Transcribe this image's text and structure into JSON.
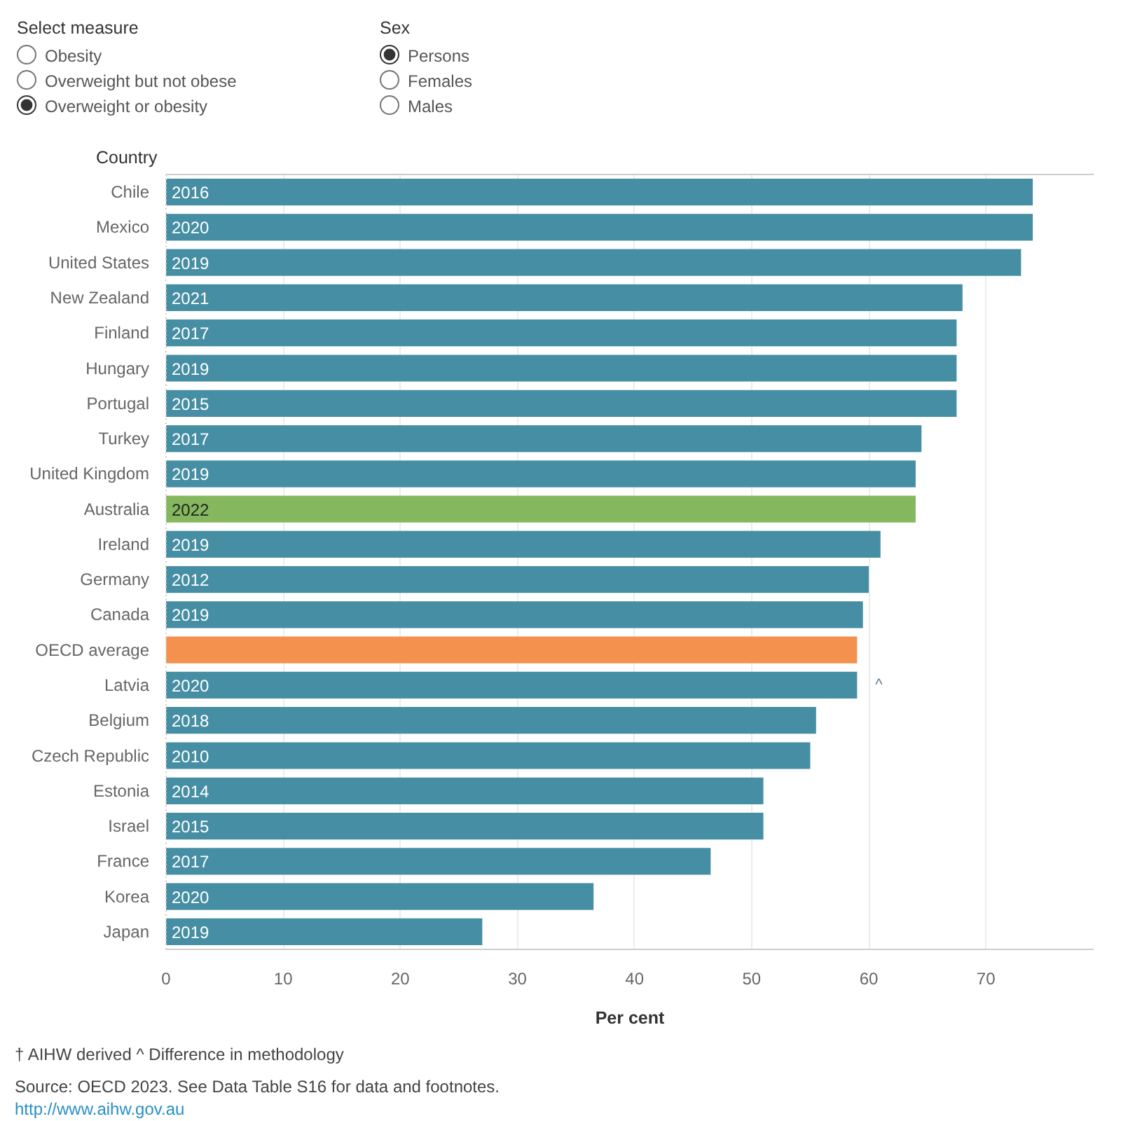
{
  "chart_data": {
    "type": "bar",
    "orientation": "horizontal",
    "ylabel": "Country",
    "xlabel": "Per cent",
    "categories": [
      "Chile",
      "Mexico",
      "United States",
      "New Zealand",
      "Finland",
      "Hungary",
      "Portugal",
      "Turkey",
      "United Kingdom",
      "Australia",
      "Ireland",
      "Germany",
      "Canada",
      "OECD average",
      "Latvia",
      "Belgium",
      "Czech Republic",
      "Estonia",
      "Israel",
      "France",
      "Korea",
      "Japan"
    ],
    "values": [
      74,
      74,
      73,
      68,
      67.5,
      67.5,
      67.5,
      64.5,
      64,
      64,
      61,
      60,
      59.5,
      59,
      59,
      55.5,
      55,
      51,
      51,
      46.5,
      36.5,
      27
    ],
    "colors": [
      "#468ea3",
      "#468ea3",
      "#468ea3",
      "#468ea3",
      "#468ea3",
      "#468ea3",
      "#468ea3",
      "#468ea3",
      "#468ea3",
      "#84b75e",
      "#468ea3",
      "#468ea3",
      "#468ea3",
      "#f5914f",
      "#468ea3",
      "#468ea3",
      "#468ea3",
      "#468ea3",
      "#468ea3",
      "#468ea3",
      "#468ea3",
      "#468ea3"
    ],
    "xlim": [
      0,
      79.2
    ],
    "xticks": [
      0,
      10,
      20,
      30,
      40,
      50,
      60,
      70
    ],
    "grid": "x",
    "annotations": [
      "Select measure",
      "Obesity",
      "Overweight but not obese",
      "Overweight or obesity",
      "Sex",
      "Persons",
      "Females",
      "Males",
      "† AIHW derived  ^ Difference in methodology",
      "Source: OECD 2023. See Data Table S16 for data and footnotes.",
      "http://www.aihw.gov.au",
      {
        "text": "2016",
        "y": "Chile"
      },
      {
        "text": "2020",
        "y": "Mexico"
      },
      {
        "text": "2019",
        "y": "United States"
      },
      {
        "text": "2021",
        "y": "New Zealand"
      },
      {
        "text": "2017",
        "y": "Finland"
      },
      {
        "text": "2019",
        "y": "Hungary"
      },
      {
        "text": "2015",
        "y": "Portugal"
      },
      {
        "text": "2017",
        "y": "Turkey"
      },
      {
        "text": "2019",
        "y": "United Kingdom"
      },
      {
        "text": "2022",
        "y": "Australia"
      },
      {
        "text": "2019",
        "y": "Ireland"
      },
      {
        "text": "2012",
        "y": "Germany"
      },
      {
        "text": "2019",
        "y": "Canada"
      },
      {
        "text": "2020",
        "y": "Latvia"
      },
      {
        "text": "^",
        "x": 59,
        "y": "Latvia"
      },
      {
        "text": "2018",
        "y": "Belgium"
      },
      {
        "text": "2010",
        "y": "Czech Republic"
      },
      {
        "text": "2014",
        "y": "Estonia"
      },
      {
        "text": "2015",
        "y": "Israel"
      },
      {
        "text": "2017",
        "y": "France"
      },
      {
        "text": "2020",
        "y": "Korea"
      },
      {
        "text": "2019",
        "y": "Japan"
      }
    ]
  }
}
